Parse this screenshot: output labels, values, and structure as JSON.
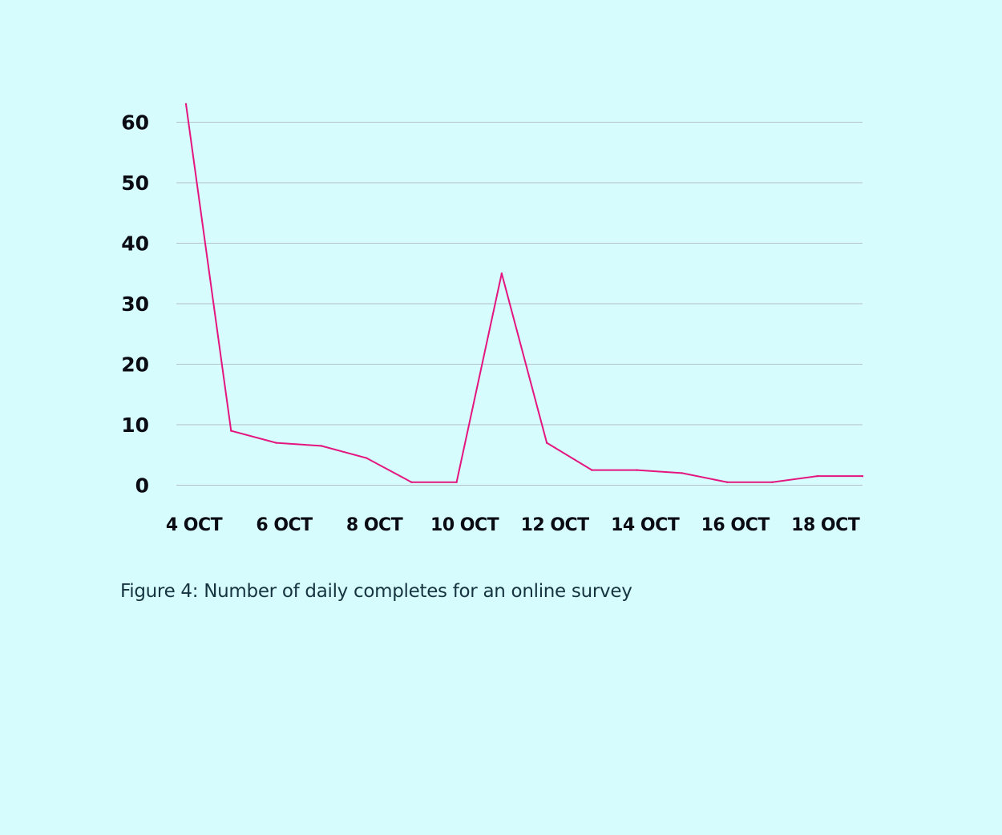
{
  "theme": {
    "background": "#d6fcfd",
    "line_color": "#e4157f",
    "grid_color": "#b4c1c9",
    "tick_text_color": "#0b0b14",
    "caption_color": "#163440"
  },
  "caption": "Figure 4: Number of daily completes for an online survey",
  "chart_data": {
    "type": "line",
    "title": "",
    "xlabel": "",
    "ylabel": "",
    "x": [
      "2023-10-04",
      "2023-10-05",
      "2023-10-06",
      "2023-10-07",
      "2023-10-08",
      "2023-10-09",
      "2023-10-10",
      "2023-10-11",
      "2023-10-12",
      "2023-10-13",
      "2023-10-14",
      "2023-10-15",
      "2023-10-16",
      "2023-10-17",
      "2023-10-18",
      "2023-10-19"
    ],
    "series": [
      {
        "values": [
          63,
          9,
          7,
          6.5,
          4.5,
          0.5,
          0.5,
          35,
          7,
          2.5,
          2.5,
          2,
          0.5,
          0.5,
          1.5,
          1.5
        ]
      }
    ],
    "ylim": [
      0,
      63
    ],
    "yticks": [
      0,
      10,
      20,
      30,
      40,
      50,
      60
    ],
    "ytick_labels": [
      "0",
      "10",
      "20",
      "30",
      "40",
      "50",
      "60"
    ],
    "xtick_labels": [
      "4 OCT",
      "6 OCT",
      "8 OCT",
      "10 OCT",
      "12 OCT",
      "14 OCT",
      "16 OCT",
      "18 OCT"
    ],
    "grid": "horizontal",
    "legend": "none"
  }
}
